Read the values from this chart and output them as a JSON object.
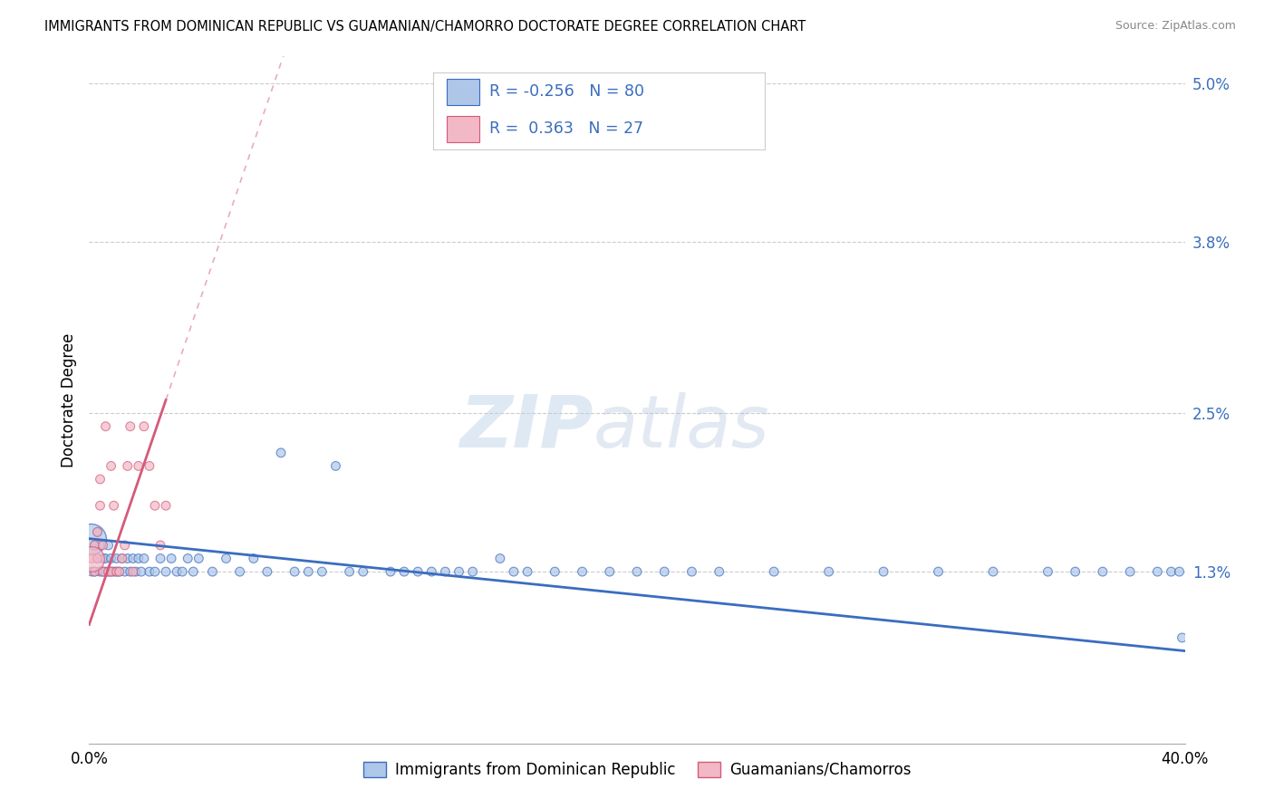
{
  "title": "IMMIGRANTS FROM DOMINICAN REPUBLIC VS GUAMANIAN/CHAMORRO DOCTORATE DEGREE CORRELATION CHART",
  "source": "Source: ZipAtlas.com",
  "ylabel": "Doctorate Degree",
  "xlim": [
    0.0,
    0.4
  ],
  "ylim": [
    0.0,
    0.052
  ],
  "yticks": [
    0.013,
    0.025,
    0.038,
    0.05
  ],
  "ytick_labels": [
    "1.3%",
    "2.5%",
    "3.8%",
    "5.0%"
  ],
  "xticks": [
    0.0,
    0.4
  ],
  "xtick_labels": [
    "0.0%",
    "40.0%"
  ],
  "blue_color": "#aec6e8",
  "pink_color": "#f2b8c6",
  "trend_blue": "#3a6dbf",
  "trend_pink": "#d45a7a",
  "watermark_zip": "ZIP",
  "watermark_atlas": "atlas",
  "blue_scatter_x": [
    0.001,
    0.002,
    0.002,
    0.003,
    0.003,
    0.004,
    0.004,
    0.005,
    0.005,
    0.006,
    0.006,
    0.007,
    0.007,
    0.008,
    0.008,
    0.009,
    0.01,
    0.01,
    0.011,
    0.012,
    0.013,
    0.014,
    0.015,
    0.016,
    0.017,
    0.018,
    0.019,
    0.02,
    0.022,
    0.024,
    0.026,
    0.028,
    0.03,
    0.032,
    0.034,
    0.036,
    0.038,
    0.04,
    0.045,
    0.05,
    0.055,
    0.06,
    0.065,
    0.07,
    0.075,
    0.08,
    0.085,
    0.09,
    0.095,
    0.1,
    0.11,
    0.115,
    0.12,
    0.125,
    0.13,
    0.135,
    0.14,
    0.15,
    0.155,
    0.16,
    0.17,
    0.18,
    0.19,
    0.2,
    0.21,
    0.22,
    0.23,
    0.25,
    0.27,
    0.29,
    0.31,
    0.33,
    0.35,
    0.36,
    0.37,
    0.38,
    0.39,
    0.395,
    0.398,
    0.399
  ],
  "blue_scatter_y": [
    0.013,
    0.013,
    0.015,
    0.014,
    0.016,
    0.013,
    0.015,
    0.013,
    0.014,
    0.013,
    0.014,
    0.013,
    0.015,
    0.013,
    0.014,
    0.013,
    0.014,
    0.013,
    0.013,
    0.014,
    0.013,
    0.014,
    0.013,
    0.014,
    0.013,
    0.014,
    0.013,
    0.014,
    0.013,
    0.013,
    0.014,
    0.013,
    0.014,
    0.013,
    0.013,
    0.014,
    0.013,
    0.014,
    0.013,
    0.014,
    0.013,
    0.014,
    0.013,
    0.022,
    0.013,
    0.013,
    0.013,
    0.021,
    0.013,
    0.013,
    0.013,
    0.013,
    0.013,
    0.013,
    0.013,
    0.013,
    0.013,
    0.014,
    0.013,
    0.013,
    0.013,
    0.013,
    0.013,
    0.013,
    0.013,
    0.013,
    0.013,
    0.013,
    0.013,
    0.013,
    0.013,
    0.013,
    0.013,
    0.013,
    0.013,
    0.013,
    0.013,
    0.013,
    0.013,
    0.008
  ],
  "blue_scatter_size": [
    50,
    50,
    50,
    50,
    50,
    50,
    50,
    50,
    50,
    50,
    50,
    50,
    50,
    50,
    50,
    50,
    50,
    50,
    50,
    50,
    50,
    50,
    50,
    50,
    50,
    50,
    50,
    50,
    50,
    50,
    50,
    50,
    50,
    50,
    50,
    50,
    50,
    50,
    50,
    50,
    50,
    50,
    50,
    50,
    50,
    50,
    50,
    50,
    50,
    50,
    50,
    50,
    50,
    50,
    50,
    50,
    50,
    50,
    50,
    50,
    50,
    50,
    50,
    50,
    50,
    50,
    50,
    50,
    50,
    50,
    50,
    50,
    50,
    50,
    50,
    50,
    50,
    50,
    50,
    50
  ],
  "pink_scatter_x": [
    0.001,
    0.002,
    0.002,
    0.003,
    0.003,
    0.004,
    0.004,
    0.005,
    0.005,
    0.006,
    0.007,
    0.008,
    0.008,
    0.009,
    0.01,
    0.011,
    0.012,
    0.013,
    0.014,
    0.015,
    0.016,
    0.018,
    0.02,
    0.022,
    0.024,
    0.026,
    0.028
  ],
  "pink_scatter_y": [
    0.014,
    0.013,
    0.015,
    0.014,
    0.016,
    0.018,
    0.02,
    0.013,
    0.015,
    0.024,
    0.013,
    0.013,
    0.021,
    0.018,
    0.013,
    0.013,
    0.014,
    0.015,
    0.021,
    0.024,
    0.013,
    0.021,
    0.024,
    0.021,
    0.018,
    0.015,
    0.018
  ],
  "pink_scatter_size": [
    50,
    50,
    50,
    50,
    50,
    50,
    50,
    50,
    50,
    50,
    50,
    50,
    50,
    50,
    50,
    50,
    50,
    50,
    50,
    50,
    50,
    50,
    50,
    50,
    50,
    50,
    50
  ],
  "blue_trend_x0": 0.0,
  "blue_trend_y0": 0.0155,
  "blue_trend_x1": 0.4,
  "blue_trend_y1": 0.007,
  "pink_trend_x0": 0.0,
  "pink_trend_y0": 0.009,
  "pink_trend_x1": 0.028,
  "pink_trend_y1": 0.026
}
